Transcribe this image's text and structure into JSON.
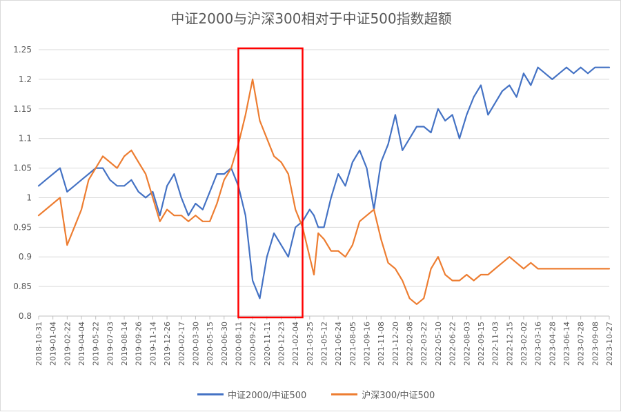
{
  "chart_data": {
    "type": "line",
    "title": "中证2000与沪深300相对于中证500指数超额",
    "ylim": [
      0.8,
      1.25
    ],
    "yticks": [
      "0.8",
      "0.85",
      "0.9",
      "0.95",
      "1",
      "1.05",
      "1.1",
      "1.15",
      "1.2",
      "1.25"
    ],
    "categories": [
      "2018-10-31",
      "2019-01-04",
      "2019-02-22",
      "2019-04-04",
      "2019-05-22",
      "2019-07-03",
      "2019-08-14",
      "2019-09-26",
      "2019-11-14",
      "2019-12-26",
      "2020-02-17",
      "2020-03-30",
      "2020-05-15",
      "2020-06-30",
      "2020-08-11",
      "2020-09-22",
      "2020-11-11",
      "2020-12-23",
      "2021-02-04",
      "2021-03-25",
      "2021-05-12",
      "2021-06-24",
      "2021-08-05",
      "2021-09-16",
      "2021-11-08",
      "2021-12-20",
      "2022-02-08",
      "2022-03-22",
      "2022-05-10",
      "2022-06-22",
      "2022-08-03",
      "2022-09-15",
      "2022-11-03",
      "2022-12-15",
      "2023-02-02",
      "2023-03-16",
      "2023-04-28",
      "2023-06-14",
      "2023-07-28",
      "2023-09-08",
      "2023-10-27"
    ],
    "series": [
      {
        "name": "中证2000/中证500",
        "color": "#4472C4",
        "x": [
          0,
          0.5,
          1,
          1.5,
          2,
          2.5,
          3,
          3.5,
          4,
          4.5,
          5,
          5.5,
          6,
          6.5,
          7,
          7.5,
          8,
          8.5,
          9,
          9.5,
          10,
          10.5,
          11,
          11.5,
          12,
          12.5,
          13,
          13.5,
          14,
          14.5,
          15,
          15.5,
          16,
          16.5,
          17,
          17.5,
          18,
          18.5,
          19,
          19.3,
          19.6,
          20,
          20.5,
          21,
          21.5,
          22,
          22.5,
          23,
          23.5,
          24,
          24.5,
          25,
          25.5,
          26,
          26.5,
          27,
          27.5,
          28,
          28.5,
          29,
          29.5,
          30,
          30.5,
          31,
          31.5,
          32,
          32.5,
          33,
          33.5,
          34,
          34.5,
          35,
          35.5,
          36,
          36.5,
          37,
          37.5,
          38,
          38.5,
          39,
          39.5,
          40
        ],
        "values": [
          1.02,
          1.03,
          1.04,
          1.05,
          1.01,
          1.02,
          1.03,
          1.04,
          1.05,
          1.05,
          1.03,
          1.02,
          1.02,
          1.03,
          1.01,
          1.0,
          1.01,
          0.97,
          1.02,
          1.04,
          1.0,
          0.97,
          0.99,
          0.98,
          1.01,
          1.04,
          1.04,
          1.05,
          1.02,
          0.97,
          0.86,
          0.83,
          0.9,
          0.94,
          0.92,
          0.9,
          0.95,
          0.96,
          0.98,
          0.97,
          0.95,
          0.95,
          1.0,
          1.04,
          1.02,
          1.06,
          1.08,
          1.05,
          0.98,
          1.06,
          1.09,
          1.14,
          1.08,
          1.1,
          1.12,
          1.12,
          1.11,
          1.15,
          1.13,
          1.14,
          1.1,
          1.14,
          1.17,
          1.19,
          1.14,
          1.16,
          1.18,
          1.19,
          1.17,
          1.21,
          1.19,
          1.22,
          1.21,
          1.2,
          1.21,
          1.22,
          1.21,
          1.22,
          1.21,
          1.22,
          1.22,
          1.22
        ]
      },
      {
        "name": "沪深300/中证500",
        "color": "#ED7D31",
        "x": [
          0,
          0.5,
          1,
          1.5,
          2,
          2.5,
          3,
          3.5,
          4,
          4.5,
          5,
          5.5,
          6,
          6.5,
          7,
          7.5,
          8,
          8.5,
          9,
          9.5,
          10,
          10.5,
          11,
          11.5,
          12,
          12.5,
          13,
          13.5,
          14,
          14.5,
          15,
          15.5,
          16,
          16.5,
          17,
          17.5,
          18,
          18.5,
          19,
          19.3,
          19.6,
          20,
          20.5,
          21,
          21.5,
          22,
          22.5,
          23,
          23.5,
          24,
          24.5,
          25,
          25.5,
          26,
          26.5,
          27,
          27.5,
          28,
          28.5,
          29,
          29.5,
          30,
          30.5,
          31,
          31.5,
          32,
          32.5,
          33,
          33.5,
          34,
          34.5,
          35,
          35.5,
          36,
          36.5,
          37,
          37.5,
          38,
          38.5,
          39,
          39.5,
          40
        ],
        "values": [
          0.97,
          0.98,
          0.99,
          1.0,
          0.92,
          0.95,
          0.98,
          1.03,
          1.05,
          1.07,
          1.06,
          1.05,
          1.07,
          1.08,
          1.06,
          1.04,
          1.0,
          0.96,
          0.98,
          0.97,
          0.97,
          0.96,
          0.97,
          0.96,
          0.96,
          0.99,
          1.03,
          1.05,
          1.09,
          1.14,
          1.2,
          1.13,
          1.1,
          1.07,
          1.06,
          1.04,
          0.98,
          0.95,
          0.9,
          0.87,
          0.94,
          0.93,
          0.91,
          0.91,
          0.9,
          0.92,
          0.96,
          0.97,
          0.98,
          0.93,
          0.89,
          0.88,
          0.86,
          0.83,
          0.82,
          0.83,
          0.88,
          0.9,
          0.87,
          0.86,
          0.86,
          0.87,
          0.86,
          0.87,
          0.87,
          0.88,
          0.89,
          0.9,
          0.89,
          0.88,
          0.89,
          0.88,
          0.88,
          0.88,
          0.88,
          0.88,
          0.88,
          0.88,
          0.88,
          0.88,
          0.88,
          0.88
        ]
      }
    ],
    "annotation": {
      "type": "highlight-box",
      "color": "#FF0000",
      "x_from": 14,
      "x_to": 18.5,
      "y_from": 0.8,
      "y_to": 1.25
    },
    "grid": true,
    "legend_position": "bottom"
  }
}
